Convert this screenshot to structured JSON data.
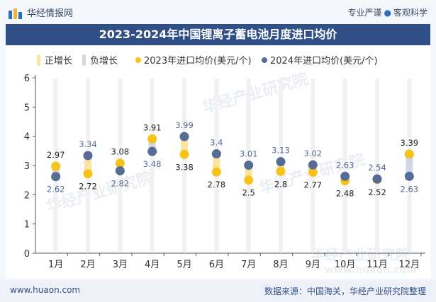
{
  "header": {
    "brand": "华经情报网",
    "slogan_left": "专业严谨",
    "slogan_right": "客观科学"
  },
  "chart_data": {
    "type": "dot-change",
    "title": "2023-2024年中国锂离子蓄电池月度进口均价",
    "legend": [
      {
        "name": "正增长",
        "color": "#fbe3a0",
        "style": "band"
      },
      {
        "name": "负增长",
        "color": "#d3d6e7",
        "style": "band"
      },
      {
        "name": "2023年进口均价(美元/个)",
        "color": "#f7c21a",
        "style": "dot"
      },
      {
        "name": "2024年进口均价(美元/个)",
        "color": "#566b95",
        "style": "dot"
      }
    ],
    "categories": [
      "1月",
      "2月",
      "3月",
      "4月",
      "5月",
      "6月",
      "7月",
      "8月",
      "9月",
      "10月",
      "11月",
      "12月"
    ],
    "series": [
      {
        "name": "2023年进口均价(美元/个)",
        "values": [
          2.97,
          2.72,
          3.08,
          3.91,
          3.38,
          2.78,
          2.5,
          2.8,
          2.77,
          2.48,
          2.52,
          3.39
        ]
      },
      {
        "name": "2024年进口均价(美元/个)",
        "values": [
          2.62,
          3.34,
          2.82,
          3.48,
          3.99,
          3.4,
          3.01,
          3.13,
          3.02,
          2.63,
          2.54,
          2.63
        ]
      }
    ],
    "ylim": [
      0,
      6
    ],
    "yticks": [
      0,
      1,
      2,
      3,
      4,
      5,
      6
    ],
    "xlabel": "",
    "ylabel": "",
    "grid": false
  },
  "watermark": {
    "cn": "华经产业研究院",
    "en": "www.huaon.com"
  },
  "footer": {
    "site": "www.huaon.com",
    "source": "数据来源：中国海关，华经产业研究院整理"
  },
  "colors": {
    "accent": "#2f4f86",
    "dot2023": "#f7c21a",
    "dot2024": "#566b95",
    "band_pos": "#fbe3a0",
    "band_neg": "#d3d6e7",
    "column": "#f1f1f3"
  }
}
